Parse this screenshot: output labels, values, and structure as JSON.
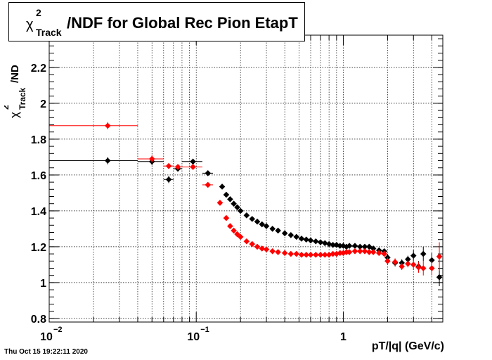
{
  "stamp": "Thu Oct 15 19:22:11 2020",
  "chart_data": {
    "type": "scatter",
    "title": "χ²Track/NDF for Global Rec Pion EtapT",
    "title_parts": {
      "chi": "χ",
      "sup": "2",
      "sub": "Track",
      "rest": "/NDF for Global Rec Pion EtapT"
    },
    "xlabel": "pT/|q| (GeV/c)",
    "ylabel_parts": {
      "chi": "χ",
      "sup": "2",
      "sub": "Track",
      "rest": "/ND"
    },
    "x_scale": "log",
    "xlim": [
      0.01,
      4.75
    ],
    "ylim": [
      0.78,
      2.38
    ],
    "grid": true,
    "x_ticks": [
      {
        "value": 0.01,
        "base": "10",
        "exp": "−2"
      },
      {
        "value": 0.1,
        "base": "10",
        "exp": "−1"
      },
      {
        "value": 1,
        "base": "1",
        "exp": ""
      }
    ],
    "y_ticks": [
      {
        "value": 0.8,
        "label": "0.8"
      },
      {
        "value": 1.0,
        "label": "1"
      },
      {
        "value": 1.2,
        "label": "1.2"
      },
      {
        "value": 1.4,
        "label": "1.4"
      },
      {
        "value": 1.6,
        "label": "1.6"
      },
      {
        "value": 1.8,
        "label": "1.8"
      },
      {
        "value": 2.0,
        "label": "2"
      },
      {
        "value": 2.2,
        "label": "2.2"
      }
    ],
    "series": [
      {
        "color": "#000000",
        "points": [
          {
            "x": 0.025,
            "y": 1.68,
            "xlo": 0.01,
            "xhi": 0.04,
            "ey": 0.02
          },
          {
            "x": 0.05,
            "y": 1.675,
            "xlo": 0.04,
            "xhi": 0.06,
            "ey": 0.02
          },
          {
            "x": 0.065,
            "y": 1.575,
            "xlo": 0.06,
            "xhi": 0.07,
            "ey": 0.02
          },
          {
            "x": 0.075,
            "y": 1.635,
            "xlo": 0.07,
            "xhi": 0.08,
            "ey": 0.015
          },
          {
            "x": 0.095,
            "y": 1.675,
            "xlo": 0.08,
            "xhi": 0.11,
            "ey": 0.015
          },
          {
            "x": 0.12,
            "y": 1.61,
            "xlo": 0.11,
            "xhi": 0.13,
            "ey": 0.01
          },
          {
            "x": 0.15,
            "y": 1.535,
            "ey": 0.008
          },
          {
            "x": 0.16,
            "y": 1.49
          },
          {
            "x": 0.17,
            "y": 1.465
          },
          {
            "x": 0.18,
            "y": 1.44
          },
          {
            "x": 0.19,
            "y": 1.42
          },
          {
            "x": 0.2,
            "y": 1.4
          },
          {
            "x": 0.22,
            "y": 1.375
          },
          {
            "x": 0.24,
            "y": 1.355
          },
          {
            "x": 0.26,
            "y": 1.34
          },
          {
            "x": 0.28,
            "y": 1.325
          },
          {
            "x": 0.3,
            "y": 1.315
          },
          {
            "x": 0.33,
            "y": 1.3
          },
          {
            "x": 0.36,
            "y": 1.29
          },
          {
            "x": 0.4,
            "y": 1.275
          },
          {
            "x": 0.44,
            "y": 1.265
          },
          {
            "x": 0.48,
            "y": 1.255
          },
          {
            "x": 0.52,
            "y": 1.245
          },
          {
            "x": 0.56,
            "y": 1.24
          },
          {
            "x": 0.6,
            "y": 1.235
          },
          {
            "x": 0.65,
            "y": 1.23
          },
          {
            "x": 0.7,
            "y": 1.225
          },
          {
            "x": 0.75,
            "y": 1.22
          },
          {
            "x": 0.8,
            "y": 1.215
          },
          {
            "x": 0.85,
            "y": 1.21
          },
          {
            "x": 0.9,
            "y": 1.21
          },
          {
            "x": 0.95,
            "y": 1.205
          },
          {
            "x": 1.0,
            "y": 1.205
          },
          {
            "x": 1.05,
            "y": 1.2
          },
          {
            "x": 1.1,
            "y": 1.205
          },
          {
            "x": 1.2,
            "y": 1.205
          },
          {
            "x": 1.3,
            "y": 1.2
          },
          {
            "x": 1.4,
            "y": 1.2
          },
          {
            "x": 1.5,
            "y": 1.2
          },
          {
            "x": 1.6,
            "y": 1.19
          },
          {
            "x": 1.75,
            "y": 1.18
          },
          {
            "x": 1.9,
            "y": 1.175
          },
          {
            "x": 2.0,
            "y": 1.14,
            "ey": 0.02
          },
          {
            "x": 2.25,
            "y": 1.11,
            "ey": 0.02
          },
          {
            "x": 2.5,
            "y": 1.11,
            "ey": 0.02
          },
          {
            "x": 2.75,
            "y": 1.13,
            "ey": 0.02
          },
          {
            "x": 3.0,
            "y": 1.15,
            "ey": 0.03
          },
          {
            "x": 3.25,
            "y": 1.09,
            "ey": 0.03
          },
          {
            "x": 3.5,
            "y": 1.16,
            "ey": 0.04
          },
          {
            "x": 4.0,
            "y": 1.125,
            "ey": 0.04
          },
          {
            "x": 4.5,
            "y": 1.03,
            "ey": 0.05
          }
        ]
      },
      {
        "color": "#ff0000",
        "points": [
          {
            "x": 0.025,
            "y": 1.875,
            "xlo": 0.01,
            "xhi": 0.04,
            "ey": 0.02
          },
          {
            "x": 0.05,
            "y": 1.69,
            "xlo": 0.04,
            "xhi": 0.06,
            "ey": 0.02
          },
          {
            "x": 0.065,
            "y": 1.65,
            "xlo": 0.06,
            "xhi": 0.07,
            "ey": 0.015
          },
          {
            "x": 0.075,
            "y": 1.645,
            "xlo": 0.07,
            "xhi": 0.08,
            "ey": 0.015
          },
          {
            "x": 0.095,
            "y": 1.645,
            "xlo": 0.08,
            "xhi": 0.11,
            "ey": 0.012
          },
          {
            "x": 0.12,
            "y": 1.545,
            "xlo": 0.11,
            "xhi": 0.13,
            "ey": 0.01
          },
          {
            "x": 0.145,
            "y": 1.445,
            "ey": 0.008
          },
          {
            "x": 0.16,
            "y": 1.36
          },
          {
            "x": 0.17,
            "y": 1.315
          },
          {
            "x": 0.18,
            "y": 1.29
          },
          {
            "x": 0.19,
            "y": 1.27
          },
          {
            "x": 0.2,
            "y": 1.255
          },
          {
            "x": 0.22,
            "y": 1.23
          },
          {
            "x": 0.24,
            "y": 1.215
          },
          {
            "x": 0.26,
            "y": 1.2
          },
          {
            "x": 0.28,
            "y": 1.19
          },
          {
            "x": 0.3,
            "y": 1.185
          },
          {
            "x": 0.33,
            "y": 1.175
          },
          {
            "x": 0.36,
            "y": 1.17
          },
          {
            "x": 0.4,
            "y": 1.165
          },
          {
            "x": 0.44,
            "y": 1.16
          },
          {
            "x": 0.48,
            "y": 1.16
          },
          {
            "x": 0.52,
            "y": 1.155
          },
          {
            "x": 0.56,
            "y": 1.155
          },
          {
            "x": 0.6,
            "y": 1.155
          },
          {
            "x": 0.65,
            "y": 1.155
          },
          {
            "x": 0.7,
            "y": 1.155
          },
          {
            "x": 0.75,
            "y": 1.155
          },
          {
            "x": 0.8,
            "y": 1.155
          },
          {
            "x": 0.85,
            "y": 1.16
          },
          {
            "x": 0.9,
            "y": 1.16
          },
          {
            "x": 0.95,
            "y": 1.165
          },
          {
            "x": 1.0,
            "y": 1.165
          },
          {
            "x": 1.05,
            "y": 1.17
          },
          {
            "x": 1.1,
            "y": 1.17
          },
          {
            "x": 1.2,
            "y": 1.175
          },
          {
            "x": 1.3,
            "y": 1.175
          },
          {
            "x": 1.4,
            "y": 1.175
          },
          {
            "x": 1.5,
            "y": 1.17
          },
          {
            "x": 1.6,
            "y": 1.17
          },
          {
            "x": 1.75,
            "y": 1.165
          },
          {
            "x": 1.9,
            "y": 1.16
          },
          {
            "x": 2.0,
            "y": 1.12,
            "ey": 0.02
          },
          {
            "x": 2.25,
            "y": 1.115,
            "ey": 0.02
          },
          {
            "x": 2.5,
            "y": 1.09,
            "ey": 0.02
          },
          {
            "x": 2.75,
            "y": 1.105,
            "ey": 0.02
          },
          {
            "x": 3.0,
            "y": 1.1,
            "ey": 0.03
          },
          {
            "x": 3.25,
            "y": 1.085,
            "ey": 0.03
          },
          {
            "x": 3.5,
            "y": 1.08,
            "ey": 0.04
          },
          {
            "x": 4.0,
            "y": 1.08,
            "ey": 0.04
          },
          {
            "x": 4.5,
            "y": 1.145,
            "ey": 0.08
          }
        ]
      }
    ]
  }
}
